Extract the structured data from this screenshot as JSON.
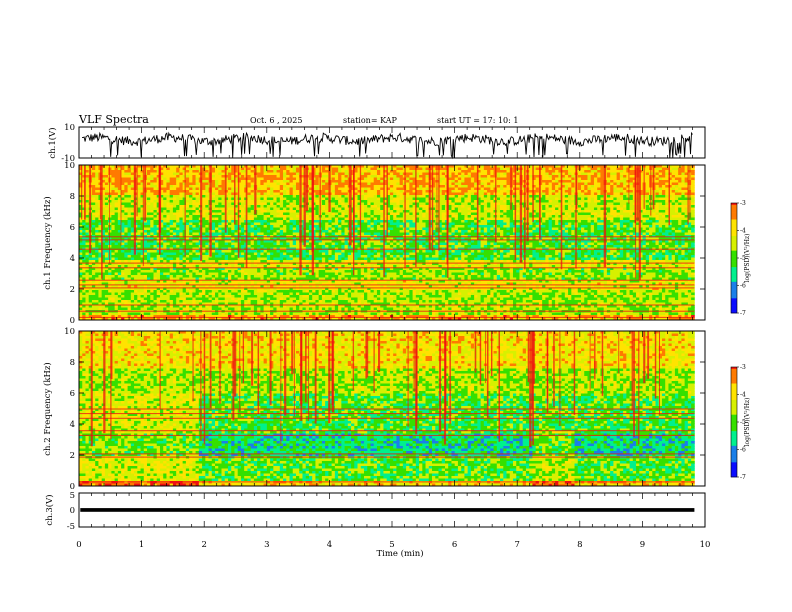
{
  "header": {
    "title": "VLF Spectra",
    "date": "Oct. 6  , 2025",
    "station": "station= KAP",
    "start": "start  UT  =   17: 10: 1"
  },
  "colorbar_title": "log(PSD)(V²/Hz)",
  "colors": {
    "bg": "#ffffff",
    "axis": "#000000",
    "waveform": "#000000",
    "colormap": [
      "#0a0cff",
      "#1a7fe8",
      "#00f08e",
      "#35e000",
      "#d7f000",
      "#ffe300",
      "#ff7a00",
      "#ee1010",
      "#ffffff"
    ]
  },
  "chart_data": [
    {
      "type": "line",
      "name": "ch1-waveform",
      "ylabel": "ch.1(V)",
      "ylim": [
        -10,
        10
      ],
      "yticks": [
        "10",
        "-10"
      ],
      "xlim": [
        0,
        10
      ],
      "description_values": "noisy signal, mostly between -4 and +6 V with occasional spikes reaching -10 V",
      "baseline": 2,
      "noise_amplitude": 3,
      "spike_count": 40
    },
    {
      "type": "heatmap",
      "name": "ch1-spectrogram",
      "ylabel": "ch.1 Frequency (kHz)",
      "ylim": [
        0,
        10
      ],
      "yticks": [
        "0",
        "2",
        "4",
        "6",
        "8",
        "10"
      ],
      "xlim": [
        0,
        9.83
      ],
      "colorbar": {
        "range": [
          -7,
          -3
        ],
        "ticks": [
          "-3",
          "-4",
          "-5",
          "-6",
          "-7"
        ],
        "label": "log(PSD)(V²/Hz)"
      },
      "bands": [
        {
          "fmin": 0.0,
          "fmax": 0.4,
          "level": -3.6
        },
        {
          "fmin": 0.4,
          "fmax": 2.0,
          "level": -4.6
        },
        {
          "fmin": 2.0,
          "fmax": 2.6,
          "level": -4.2
        },
        {
          "fmin": 2.6,
          "fmax": 3.4,
          "level": -4.7
        },
        {
          "fmin": 3.4,
          "fmax": 3.8,
          "level": -4.3
        },
        {
          "fmin": 3.8,
          "fmax": 4.6,
          "level": -5.1
        },
        {
          "fmin": 4.6,
          "fmax": 5.2,
          "level": -5.0
        },
        {
          "fmin": 5.2,
          "fmax": 6.4,
          "level": -5.0
        },
        {
          "fmin": 6.4,
          "fmax": 8.0,
          "level": -4.4
        },
        {
          "fmin": 8.0,
          "fmax": 10.0,
          "level": -3.7
        }
      ],
      "lines_khz": [
        0.2,
        0.6,
        1.0,
        2.1,
        2.3,
        2.6,
        3.4,
        3.7,
        4.6,
        5.2,
        5.4
      ]
    },
    {
      "type": "heatmap",
      "name": "ch2-spectrogram",
      "ylabel": "ch.2 Frequency (kHz)",
      "ylim": [
        0,
        10
      ],
      "yticks": [
        "0",
        "2",
        "4",
        "6",
        "8",
        "10"
      ],
      "xlim": [
        0,
        9.83
      ],
      "colorbar": {
        "range": [
          -7,
          -3
        ],
        "ticks": [
          "-3",
          "-4",
          "-5",
          "-6",
          "-7"
        ],
        "label": "log(PSD)(V²/Hz)"
      },
      "bands": [
        {
          "fmin": 0.0,
          "fmax": 0.4,
          "level": -3.8
        },
        {
          "fmin": 0.4,
          "fmax": 2.0,
          "level": -5.0
        },
        {
          "fmin": 2.0,
          "fmax": 3.4,
          "level": -5.5
        },
        {
          "fmin": 3.4,
          "fmax": 4.4,
          "level": -5.1
        },
        {
          "fmin": 4.4,
          "fmax": 6.0,
          "level": -5.0
        },
        {
          "fmin": 6.0,
          "fmax": 7.6,
          "level": -4.6
        },
        {
          "fmin": 7.6,
          "fmax": 10.0,
          "level": -4.0
        }
      ],
      "early_hot_until_min": 1.9,
      "gap_min": [
        7.25,
        7.9
      ],
      "lines_khz": [
        0.3,
        1.9,
        2.1,
        3.3,
        3.6,
        4.4,
        4.7,
        5.0
      ]
    },
    {
      "type": "line",
      "name": "ch3-waveform",
      "ylabel": "ch.3(V)",
      "ylim": [
        -5,
        5
      ],
      "yticks": [
        "5",
        "0",
        "-5"
      ],
      "xlim": [
        0,
        10
      ],
      "xlabel": "Time  (min)",
      "xticks": [
        "0",
        "1",
        "2",
        "3",
        "4",
        "5",
        "6",
        "7",
        "8",
        "9",
        "10"
      ],
      "mean": 0,
      "band_halfwidth": 0.55
    }
  ]
}
